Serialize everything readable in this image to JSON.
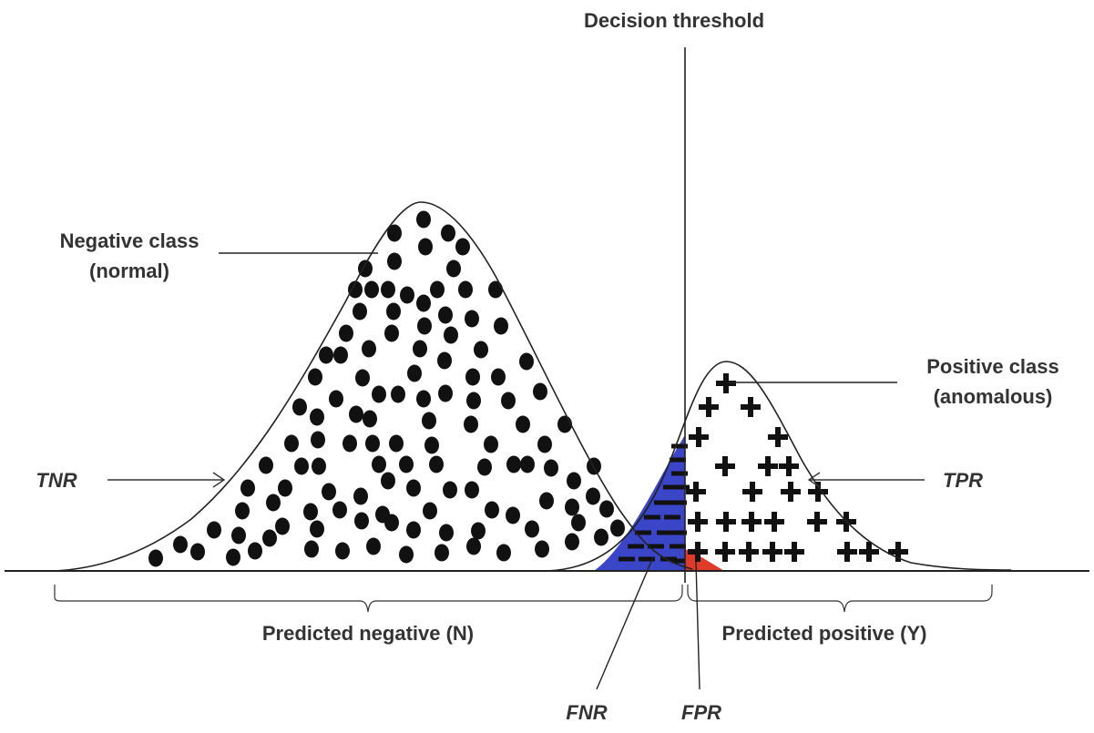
{
  "title": "Decision threshold",
  "labels": {
    "negative_class_line1": "Negative class",
    "negative_class_line2": "(normal)",
    "positive_class_line1": "Positive class",
    "positive_class_line2": "(anomalous)",
    "tnr": "TNR",
    "tpr": "TPR",
    "fnr": "FNR",
    "fpr": "FPR",
    "predicted_negative": "Predicted negative (N)",
    "predicted_positive": "Predicted positive (Y)"
  },
  "colors": {
    "ink": "#111111",
    "curve": "#222222",
    "text": "#333333",
    "fnr_fill": "#3a45c8",
    "fpr_fill": "#e03a2a"
  },
  "markers": {
    "negative": "dot",
    "positive": "plus",
    "overlap_negative": "dash"
  }
}
